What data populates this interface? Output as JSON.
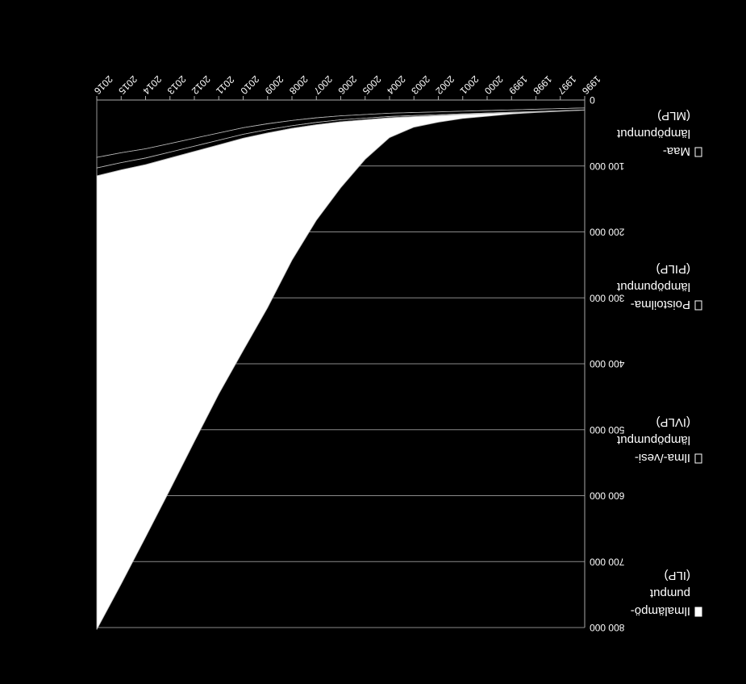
{
  "chart_data": {
    "type": "area",
    "orientation": "upside-down (y axis increases downward; image mirrored)",
    "title": "",
    "xlabel": "",
    "ylabel": "",
    "x": [
      "1996",
      "1997",
      "1998",
      "1999",
      "2000",
      "2001",
      "2002",
      "2003",
      "2004",
      "2005",
      "2006",
      "2007",
      "2008",
      "2009",
      "2010",
      "2011",
      "2012",
      "2013",
      "2014",
      "2015",
      "2016"
    ],
    "x_tick_labels": [
      "1996",
      "1997",
      "1998",
      "1999",
      "2000",
      "2001",
      "2002",
      "2003",
      "2004",
      "2005",
      "2006",
      "2007",
      "2008",
      "2009",
      "2010",
      "2011",
      "2012",
      "2013",
      "2014",
      "2015",
      "2016"
    ],
    "ylim": [
      0,
      800000
    ],
    "y_ticks": [
      0,
      100000,
      200000,
      300000,
      400000,
      500000,
      600000,
      700000,
      800000
    ],
    "y_tick_labels": [
      "0",
      "100 000",
      "200 000",
      "300 000",
      "400 000",
      "500 000",
      "600 000",
      "700 000",
      "800 000"
    ],
    "grid": true,
    "legend_position": "right",
    "stacked": true,
    "series": [
      {
        "name": "Maa-lämpöpumput (MLP)",
        "legend_lines": [
          "Maa-",
          "lämpöpumput",
          "(MLP)"
        ],
        "color": "#000000",
        "values": [
          12000,
          13000,
          14000,
          15000,
          16000,
          17000,
          18000,
          19000,
          20000,
          22000,
          24000,
          27000,
          31000,
          36000,
          42000,
          50000,
          58000,
          66000,
          74000,
          80000,
          87000
        ]
      },
      {
        "name": "Poistoilma-lämpöpumput (PILP)",
        "legend_lines": [
          "Poistoilma-",
          "lämpöpumput",
          "(PILP)"
        ],
        "color": "#000000",
        "values": [
          3000,
          3200,
          3400,
          3600,
          3800,
          4000,
          4300,
          4600,
          5000,
          5500,
          6000,
          7000,
          8000,
          9000,
          10000,
          11000,
          12000,
          13000,
          14000,
          15000,
          16000
        ]
      },
      {
        "name": "Ilma-/vesi-lämpöpumput (IVLP)",
        "legend_lines": [
          "Ilma-/vesi-",
          "lämpöpumput",
          "(IVLP)"
        ],
        "color": "#000000",
        "values": [
          300,
          400,
          500,
          600,
          800,
          1000,
          1300,
          1600,
          2000,
          2500,
          3000,
          3500,
          4000,
          5000,
          6000,
          7000,
          8000,
          9000,
          10000,
          11000,
          12000
        ]
      },
      {
        "name": "Ilmalämpö-pumput (ILP)",
        "legend_lines": [
          "Ilmalämpö-",
          "pumput",
          "(ILP)"
        ],
        "color": "#ffffff",
        "values": [
          0,
          500,
          1000,
          2000,
          4000,
          6000,
          10000,
          16000,
          30000,
          60000,
          100000,
          145000,
          200000,
          265000,
          322000,
          378000,
          440000,
          503000,
          565000,
          628000,
          688000
        ]
      }
    ]
  }
}
